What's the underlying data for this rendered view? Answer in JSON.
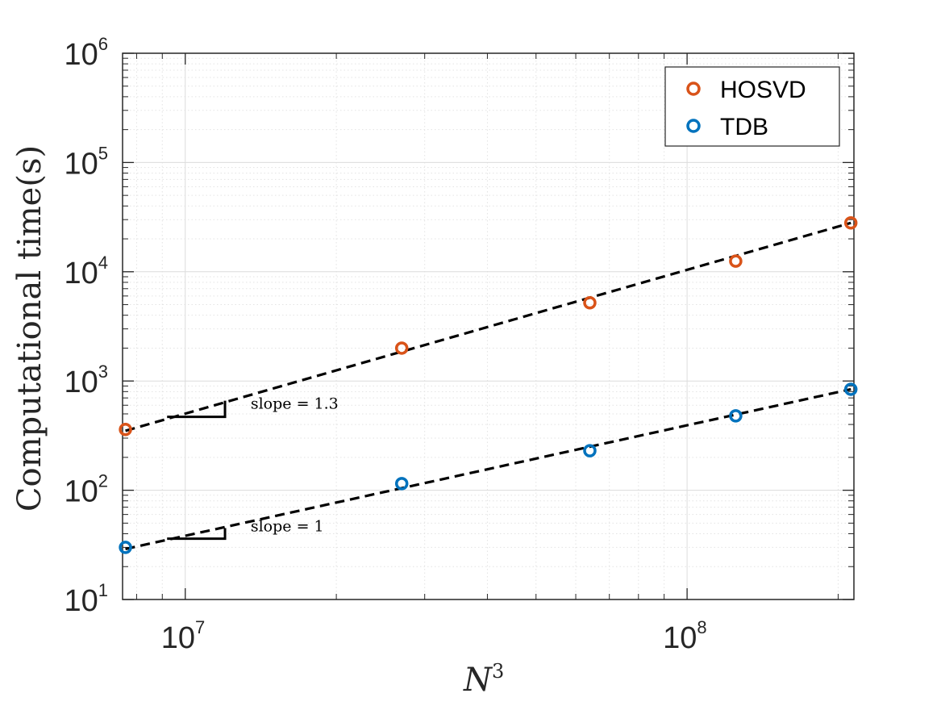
{
  "chart_data": {
    "type": "scatter",
    "xscale": "log",
    "yscale": "log",
    "xlabel": "N",
    "xlabel_sup": "3",
    "ylabel": "Computational time(s)",
    "xlim": [
      7500000,
      215000000
    ],
    "ylim": [
      10,
      1000000
    ],
    "x_ticks": [
      {
        "value": 10000000,
        "base": "10",
        "exp": "7"
      },
      {
        "value": 100000000,
        "base": "10",
        "exp": "8"
      }
    ],
    "y_ticks": [
      {
        "value": 10,
        "base": "10",
        "exp": "1"
      },
      {
        "value": 100,
        "base": "10",
        "exp": "2"
      },
      {
        "value": 1000,
        "base": "10",
        "exp": "3"
      },
      {
        "value": 10000,
        "base": "10",
        "exp": "4"
      },
      {
        "value": 100000,
        "base": "10",
        "exp": "5"
      },
      {
        "value": 1000000,
        "base": "10",
        "exp": "6"
      }
    ],
    "grid": true,
    "minor_grid": true,
    "legend_position": "top-right",
    "series": [
      {
        "name": "HOSVD",
        "color": "#D95319",
        "marker": "circle",
        "x": [
          7600000,
          27000000,
          64000000,
          125000000,
          212000000
        ],
        "y": [
          360,
          2000,
          5200,
          12500,
          28000
        ]
      },
      {
        "name": "TDB",
        "color": "#0072BD",
        "marker": "circle",
        "x": [
          7600000,
          27000000,
          64000000,
          125000000,
          212000000
        ],
        "y": [
          30,
          115,
          230,
          480,
          840
        ]
      }
    ],
    "fit_lines": [
      {
        "x": [
          7600000,
          212000000
        ],
        "y": [
          350,
          28000
        ],
        "color": "#000000",
        "style": "dashed"
      },
      {
        "x": [
          7600000,
          212000000
        ],
        "y": [
          29,
          840
        ],
        "color": "#000000",
        "style": "dashed"
      }
    ],
    "annotations": [
      {
        "text": "slope = 1.3",
        "x": 13500000,
        "y": 560
      },
      {
        "text": "slope = 1",
        "x": 13500000,
        "y": 42
      }
    ],
    "slope_triangles": [
      {
        "x": [
          9200000,
          12000000
        ],
        "y_base": 470,
        "y_top": 660
      },
      {
        "x": [
          9200000,
          12000000
        ],
        "y_base": 36,
        "y_top": 45
      }
    ]
  }
}
